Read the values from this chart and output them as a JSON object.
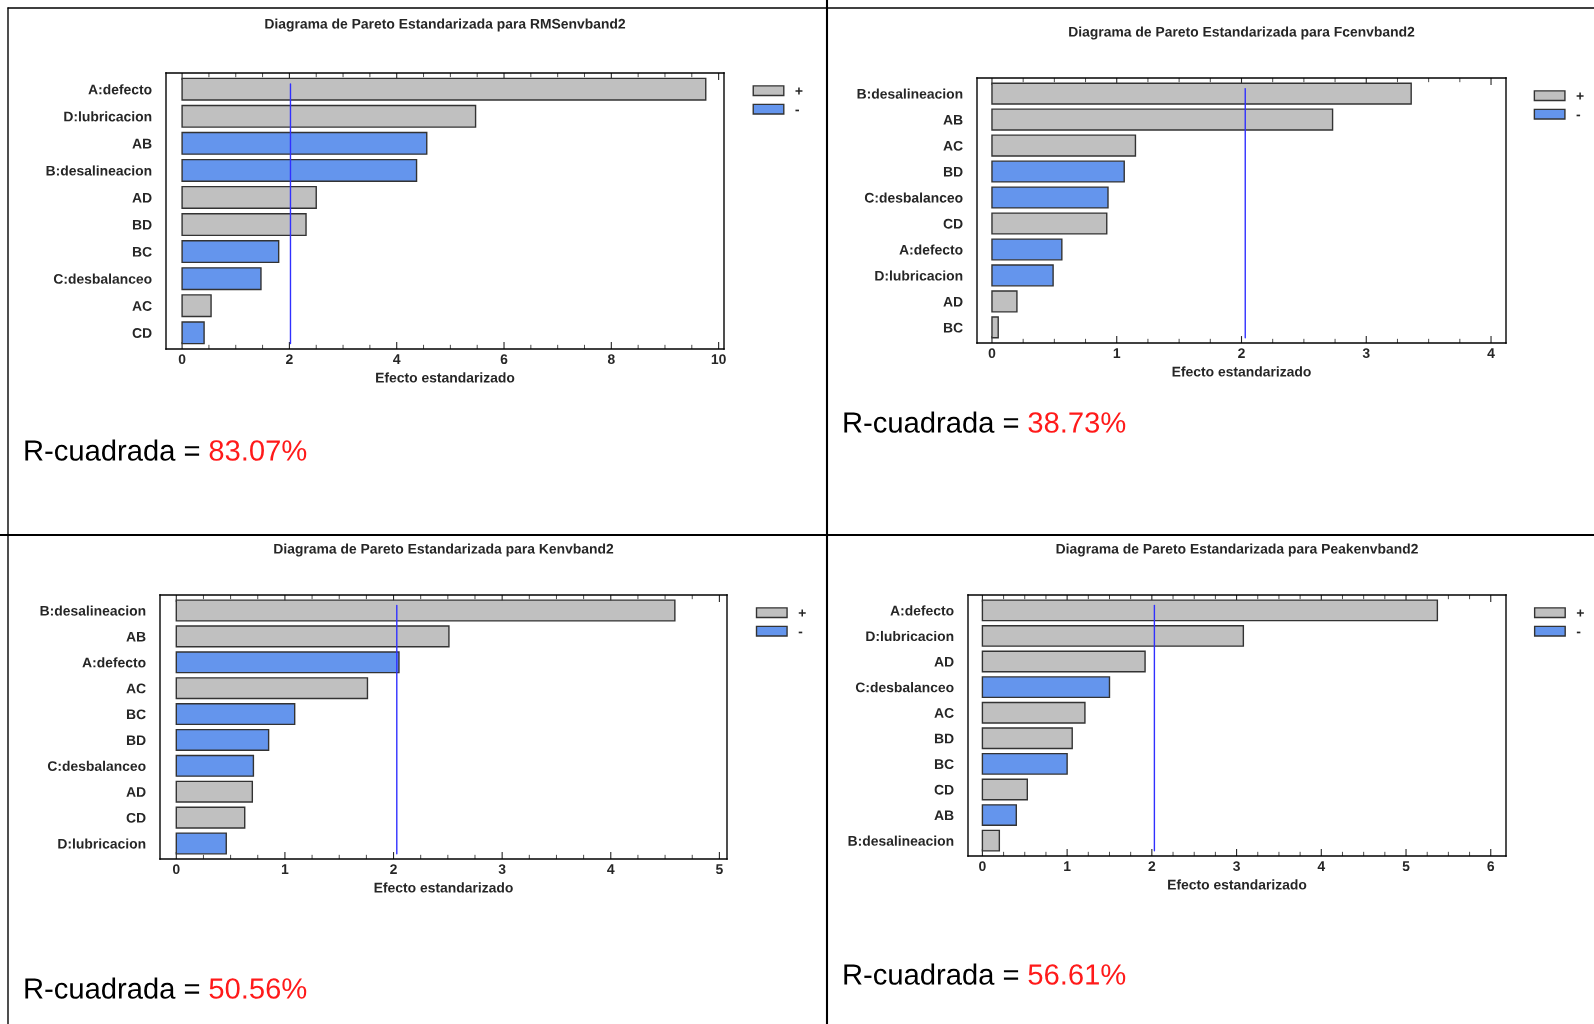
{
  "chart_data": [
    {
      "type": "bar",
      "orientation": "horizontal",
      "title": "Diagrama de Pareto Estandarizada para RMSenvband2",
      "xlabel": "Efecto estandarizado",
      "categories": [
        "A:defecto",
        "D:lubricacion",
        "AB",
        "B:desalineacion",
        "AD",
        "BD",
        "BC",
        "C:desbalanceo",
        "AC",
        "CD"
      ],
      "series": [
        {
          "name": "+",
          "color": "#c0c0c0",
          "values": [
            9.76,
            5.47,
            null,
            null,
            2.5,
            2.31,
            null,
            null,
            0.54,
            null
          ]
        },
        {
          "name": "-",
          "color": "#6495ed",
          "values": [
            null,
            null,
            4.56,
            4.37,
            null,
            null,
            1.8,
            1.47,
            null,
            0.41
          ]
        }
      ],
      "xlim": [
        -0.3,
        10.1
      ],
      "xticks": [
        0,
        2,
        4,
        6,
        8,
        10
      ],
      "legend": "right",
      "ref_lines": [
        {
          "axis": "x",
          "value": 2.02,
          "color": "#3030ff"
        }
      ],
      "annotations": [
        "R-cuadrada =",
        "83.07%"
      ]
    },
    {
      "type": "bar",
      "orientation": "horizontal",
      "title": "Diagrama de Pareto Estandarizada para Fcenvband2",
      "xlabel": "Efecto estandarizado",
      "categories": [
        "B:desalineacion",
        "AB",
        "AC",
        "BD",
        "C:desbalanceo",
        "CD",
        "A:defecto",
        "D:lubricacion",
        "AD",
        "BC"
      ],
      "series": [
        {
          "name": "+",
          "color": "#c0c0c0",
          "values": [
            3.36,
            2.73,
            1.15,
            null,
            null,
            0.92,
            null,
            null,
            0.2,
            0.05
          ]
        },
        {
          "name": "-",
          "color": "#6495ed",
          "values": [
            null,
            null,
            null,
            1.06,
            0.93,
            null,
            0.56,
            0.49,
            null,
            null
          ]
        }
      ],
      "xlim": [
        -0.12,
        4.12
      ],
      "xticks": [
        0,
        1,
        2,
        3,
        4
      ],
      "legend": "right",
      "ref_lines": [
        {
          "axis": "x",
          "value": 2.03,
          "color": "#3030ff"
        }
      ],
      "annotations": [
        "R-cuadrada =",
        "38.73%"
      ]
    },
    {
      "type": "bar",
      "orientation": "horizontal",
      "title": "Diagrama de Pareto Estandarizada para Kenvband2",
      "xlabel": "Efecto estandarizado",
      "categories": [
        "B:desalineacion",
        "AB",
        "A:defecto",
        "AC",
        "BC",
        "BD",
        "C:desbalanceo",
        "AD",
        "CD",
        "D:lubricacion"
      ],
      "series": [
        {
          "name": "+",
          "color": "#c0c0c0",
          "values": [
            4.59,
            2.51,
            null,
            1.76,
            null,
            null,
            null,
            0.7,
            0.63,
            null
          ]
        },
        {
          "name": "-",
          "color": "#6495ed",
          "values": [
            null,
            null,
            2.05,
            null,
            1.09,
            0.85,
            0.71,
            null,
            null,
            0.46
          ]
        }
      ],
      "xlim": [
        -0.15,
        5.07
      ],
      "xticks": [
        0,
        1,
        2,
        3,
        4,
        5
      ],
      "legend": "right",
      "ref_lines": [
        {
          "axis": "x",
          "value": 2.03,
          "color": "#3030ff"
        }
      ],
      "annotations": [
        "R-cuadrada =",
        "50.56%"
      ]
    },
    {
      "type": "bar",
      "orientation": "horizontal",
      "title": "Diagrama de Pareto Estandarizada para Peakenvband2",
      "xlabel": "Efecto estandarizado",
      "categories": [
        "A:defecto",
        "D:lubricacion",
        "AD",
        "C:desbalanceo",
        "AC",
        "BD",
        "BC",
        "CD",
        "AB",
        "B:desalineacion"
      ],
      "series": [
        {
          "name": "+",
          "color": "#c0c0c0",
          "values": [
            5.37,
            3.08,
            1.92,
            null,
            1.21,
            1.06,
            null,
            0.53,
            null,
            0.2
          ]
        },
        {
          "name": "-",
          "color": "#6495ed",
          "values": [
            null,
            null,
            null,
            1.5,
            null,
            null,
            1.0,
            null,
            0.4,
            null
          ]
        }
      ],
      "xlim": [
        -0.17,
        6.18
      ],
      "xticks": [
        0,
        1,
        2,
        3,
        4,
        5,
        6
      ],
      "legend": "right",
      "ref_lines": [
        {
          "axis": "x",
          "value": 2.03,
          "color": "#3030ff"
        }
      ],
      "annotations": [
        "R-cuadrada =",
        "56.61%"
      ]
    }
  ]
}
